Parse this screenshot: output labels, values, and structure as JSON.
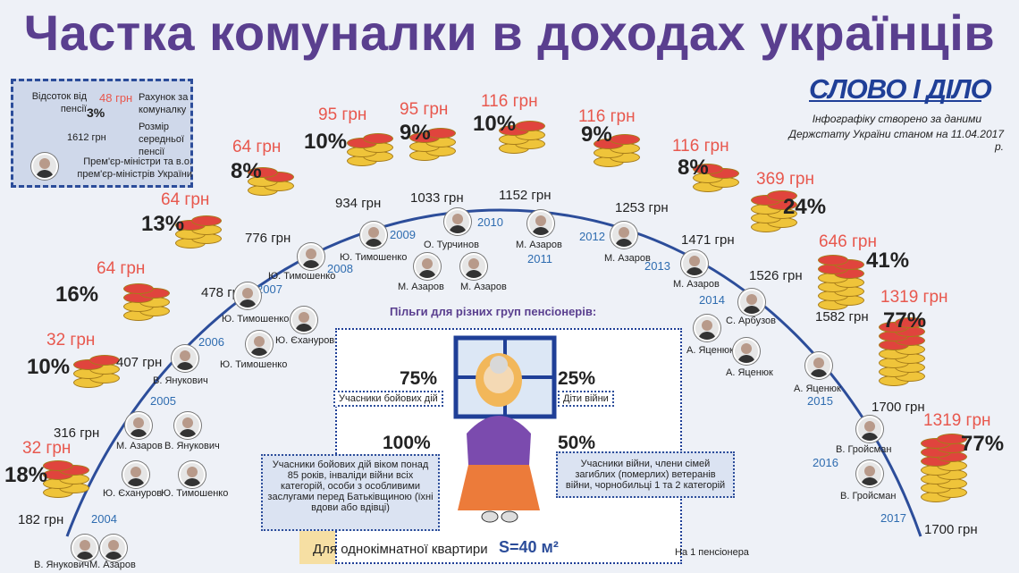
{
  "title": "Частка комуналки в доходах українців",
  "logo": "СЛОВО І ДІЛО",
  "source_line1": "Інфографіку створено за даними",
  "source_line2": "Держстату України станом на 11.04.2017 р.",
  "legend": {
    "pension_pct_label": "Відсоток від пенсії",
    "pct_example": "3%",
    "payment_example": "48 грн",
    "payment_label": "Рахунок за комуналку",
    "pension_example": "1612 грн",
    "pension_label": "Розмір середньої пенсії",
    "pm_label": "Прем'єр-міністри та в.о. прем'єр-міністрів України"
  },
  "colors": {
    "title": "#5a3f8f",
    "payment": "#e8584e",
    "year": "#2e6cb0",
    "arc": "#2c4d9a"
  },
  "chart_data": {
    "type": "line",
    "x": [
      "2004",
      "2005",
      "2006",
      "2007",
      "2008",
      "2009",
      "2010",
      "2011",
      "2012",
      "2013",
      "2014",
      "2015",
      "2016",
      "2017"
    ],
    "series": [
      {
        "values_pension": [
          182,
          316,
          407,
          478,
          776,
          934,
          1033,
          1152,
          1253,
          1471,
          1526,
          1582,
          1700,
          1700
        ],
        "values_payment": [
          "32 грн",
          "32 грн",
          "64 грн",
          "64 грн",
          "64 грн",
          "95 грн",
          "95 грн",
          "116 грн",
          "116 грн",
          "116 грн",
          "369 грн",
          "646 грн",
          "1319 грн",
          "1319 грн"
        ],
        "values_pct": [
          "18%",
          "10%",
          "16%",
          "13%",
          "8%",
          "10%",
          "9%",
          "10%",
          "9%",
          "8%",
          "24%",
          "41%",
          "77%",
          "77%"
        ]
      }
    ]
  },
  "points": [
    {
      "pct": "18%",
      "pay": "32 грн",
      "pen": "182 грн",
      "year": "2004"
    },
    {
      "pct": "10%",
      "pay": "32 грн",
      "pen": "316 грн",
      "year": "2005"
    },
    {
      "pct": "16%",
      "pay": "64 грн",
      "pen": "407 грн",
      "year": "2006"
    },
    {
      "pct": "13%",
      "pay": "64 грн",
      "pen": "478 грн",
      "year": "2007"
    },
    {
      "pct": "8%",
      "pay": "64 грн",
      "pen": "776 грн",
      "year": "2008"
    },
    {
      "pct": "10%",
      "pay": "95 грн",
      "pen": "934 грн",
      "year": "2009"
    },
    {
      "pct": "9%",
      "pay": "95 грн",
      "pen": "1033 грн",
      "year": "2010"
    },
    {
      "pct": "10%",
      "pay": "116 грн",
      "pen": "1152 грн",
      "year": "2011"
    },
    {
      "pct": "9%",
      "pay": "116 грн",
      "pen": "1253 грн",
      "year": "2012"
    },
    {
      "pct": "8%",
      "pay": "116 грн",
      "pen": "1471 грн",
      "year": "2013"
    },
    {
      "pct": "24%",
      "pay": "369 грн",
      "pen": "1526 грн",
      "year": "2014"
    },
    {
      "pct": "41%",
      "pay": "646 грн",
      "pen": "1582 грн",
      "year": "2015"
    },
    {
      "pct": "77%",
      "pay": "1319 грн",
      "pen": "1700 грн",
      "year": "2016"
    },
    {
      "pct": "77%",
      "pay": "1319 грн",
      "pen": "1700 грн",
      "year": "2017"
    }
  ],
  "persons": [
    "В. Янукович",
    "М. Азаров",
    "Ю. Єхануров",
    "Ю. Тимошенко",
    "М. Азаров",
    "В. Янукович",
    "В. Янукович",
    "Ю. Тимошенко",
    "Ю. Єханурові",
    "Ю. Тимошенко",
    "Ю. Тимошенко",
    "Ю. Тимошенко",
    "О. Турчинов",
    "М. Азаров",
    "М. Азаров",
    "М. Азаров",
    "М. Азаров",
    "М. Азаров",
    "С. Арбузов",
    "А. Яценюк",
    "А. Яценюк",
    "А. Яценюк",
    "В. Гройсман",
    "В. Гройсман"
  ],
  "room": {
    "heading": "Пільги для різних груп пенсіонерів:",
    "p75": "75%",
    "c75": "Учасники бойових дій",
    "p25": "25%",
    "c25": "Діти війни",
    "p100": "100%",
    "d100": "Учасники бойових дій віком понад 85 років, інваліди війни всіх категорій, особи з особливими заслугами перед Батьківщиною (їхні вдови або вдівці)",
    "p50": "50%",
    "d50": "Учасники війни, члени сімей загиблих (померлих) ветеранів війни, чорнобильці 1 та 2 категорій",
    "floor_label": "Для однокімнатної квартири",
    "area": "S=40 м²",
    "per_pensioner": "На 1 пенсіонера"
  }
}
